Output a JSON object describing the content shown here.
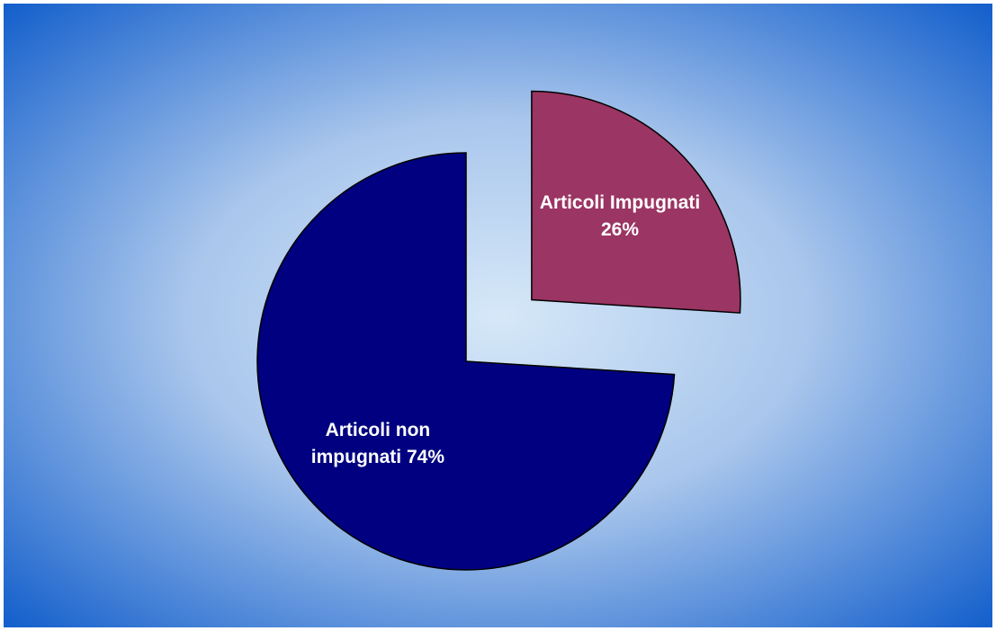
{
  "chart_data": {
    "type": "pie",
    "values": [
      26,
      74
    ],
    "value_labels": [
      "Articoli Impugnati 26%",
      "Articoli non impugnati 74%"
    ],
    "colors": [
      "#9b3563",
      "#000080"
    ],
    "exploded": [
      true,
      false
    ]
  }
}
